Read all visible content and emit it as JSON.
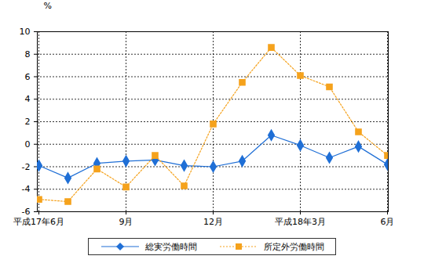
{
  "chart_data": {
    "type": "line",
    "y_label": "%",
    "categories": [
      "平成17年6月",
      null,
      null,
      "9月",
      null,
      null,
      "12月",
      null,
      null,
      "平成18年3月",
      null,
      null,
      "6月"
    ],
    "series": [
      {
        "name": "総実労働時間",
        "color": "#1f6fd6",
        "marker": "diamond",
        "line_style": "solid",
        "values": [
          -1.9,
          -3.0,
          -1.7,
          -1.5,
          -1.4,
          -1.9,
          -2.0,
          -1.5,
          0.8,
          -0.1,
          -1.2,
          -0.2,
          -1.8
        ]
      },
      {
        "name": "所定外労働時間",
        "color": "#f5a21c",
        "marker": "square",
        "line_style": "dotted",
        "values": [
          -4.9,
          -5.1,
          -2.2,
          -3.8,
          -1.0,
          -3.7,
          1.8,
          5.5,
          8.6,
          6.1,
          5.1,
          1.1,
          -1.0
        ]
      }
    ],
    "ylim": [
      -6,
      10
    ],
    "yticks": [
      -6,
      -4,
      -2,
      0,
      2,
      4,
      6,
      8,
      10
    ],
    "grid": true,
    "legend": "bottom"
  }
}
